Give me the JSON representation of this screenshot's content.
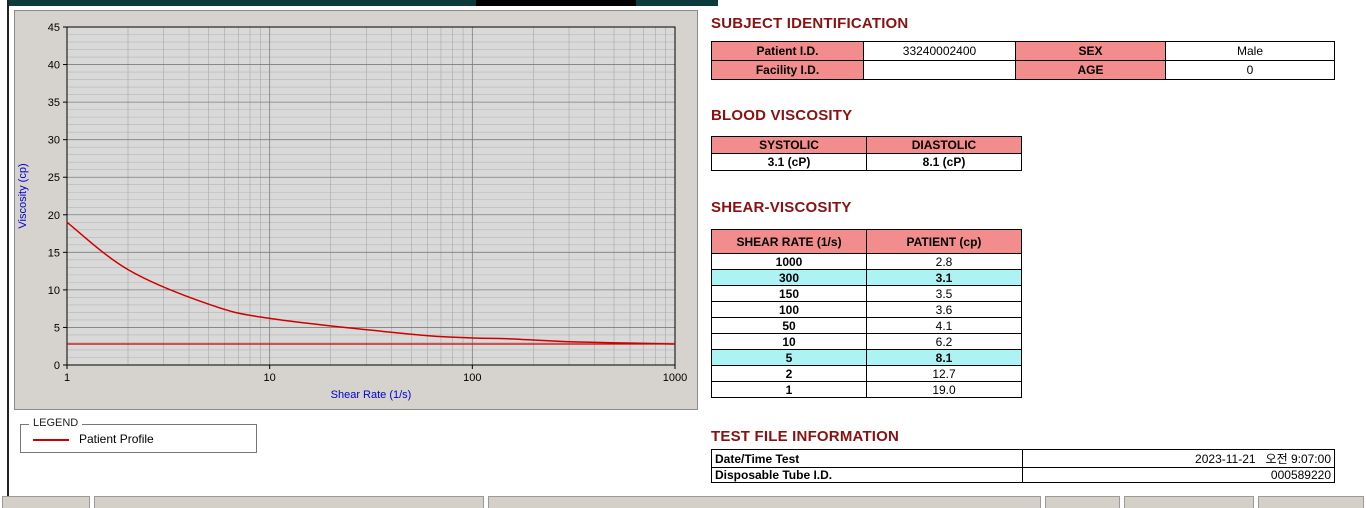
{
  "window": {
    "top_strip_color": "#0d3b3b",
    "accent_maroon": "#8a1111",
    "table_header_pink": "#f38c8c",
    "highlight_cyan": "#aef3f3",
    "curve_red": "#cc0000"
  },
  "chart_data": {
    "type": "line",
    "x_scale": "log",
    "xlabel": "Shear Rate (1/s)",
    "ylabel": "Viscosity (cp)",
    "xlim": [
      1,
      1000
    ],
    "ylim": [
      0,
      45
    ],
    "x_ticks": [
      1,
      10,
      100,
      1000
    ],
    "y_ticks": [
      0,
      5,
      10,
      15,
      20,
      25,
      30,
      35,
      40,
      45
    ],
    "grid": "log minor gridlines on, horizontal minor every 1 cp",
    "legend_title": "LEGEND",
    "legend_position": "below-chart",
    "series": [
      {
        "name": "Patient Profile",
        "color": "#cc0000",
        "x": [
          1,
          2,
          5,
          10,
          50,
          100,
          150,
          300,
          1000
        ],
        "y": [
          19.0,
          12.7,
          8.1,
          6.2,
          4.1,
          3.6,
          3.5,
          3.1,
          2.8
        ]
      }
    ],
    "hline": {
      "y": 2.8,
      "color": "#cc0000"
    }
  },
  "subject": {
    "title": "SUBJECT IDENTIFICATION",
    "rows": [
      {
        "label1": "Patient I.D.",
        "value1": "33240002400",
        "label2": "SEX",
        "value2": "Male"
      },
      {
        "label1": "Facility I.D.",
        "value1": "",
        "label2": "AGE",
        "value2": "0"
      }
    ]
  },
  "blood_viscosity": {
    "title": "BLOOD VISCOSITY",
    "headers": [
      "SYSTOLIC",
      "DIASTOLIC"
    ],
    "values": [
      "3.1 (cP)",
      "8.1 (cP)"
    ]
  },
  "shear_viscosity": {
    "title": "SHEAR-VISCOSITY",
    "headers": [
      "SHEAR RATE (1/s)",
      "PATIENT (cp)"
    ],
    "rows": [
      {
        "rate": "1000",
        "value": "2.8",
        "highlight": false
      },
      {
        "rate": "300",
        "value": "3.1",
        "highlight": true
      },
      {
        "rate": "150",
        "value": "3.5",
        "highlight": false
      },
      {
        "rate": "100",
        "value": "3.6",
        "highlight": false
      },
      {
        "rate": "50",
        "value": "4.1",
        "highlight": false
      },
      {
        "rate": "10",
        "value": "6.2",
        "highlight": false
      },
      {
        "rate": "5",
        "value": "8.1",
        "highlight": true
      },
      {
        "rate": "2",
        "value": "12.7",
        "highlight": false
      },
      {
        "rate": "1",
        "value": "19.0",
        "highlight": false
      }
    ]
  },
  "test_file": {
    "title": "TEST FILE INFORMATION",
    "rows": [
      {
        "label": "Date/Time Test",
        "value": "2023-11-21   오전 9:07:00"
      },
      {
        "label": "Disposable Tube I.D.",
        "value": "000589220"
      }
    ]
  }
}
